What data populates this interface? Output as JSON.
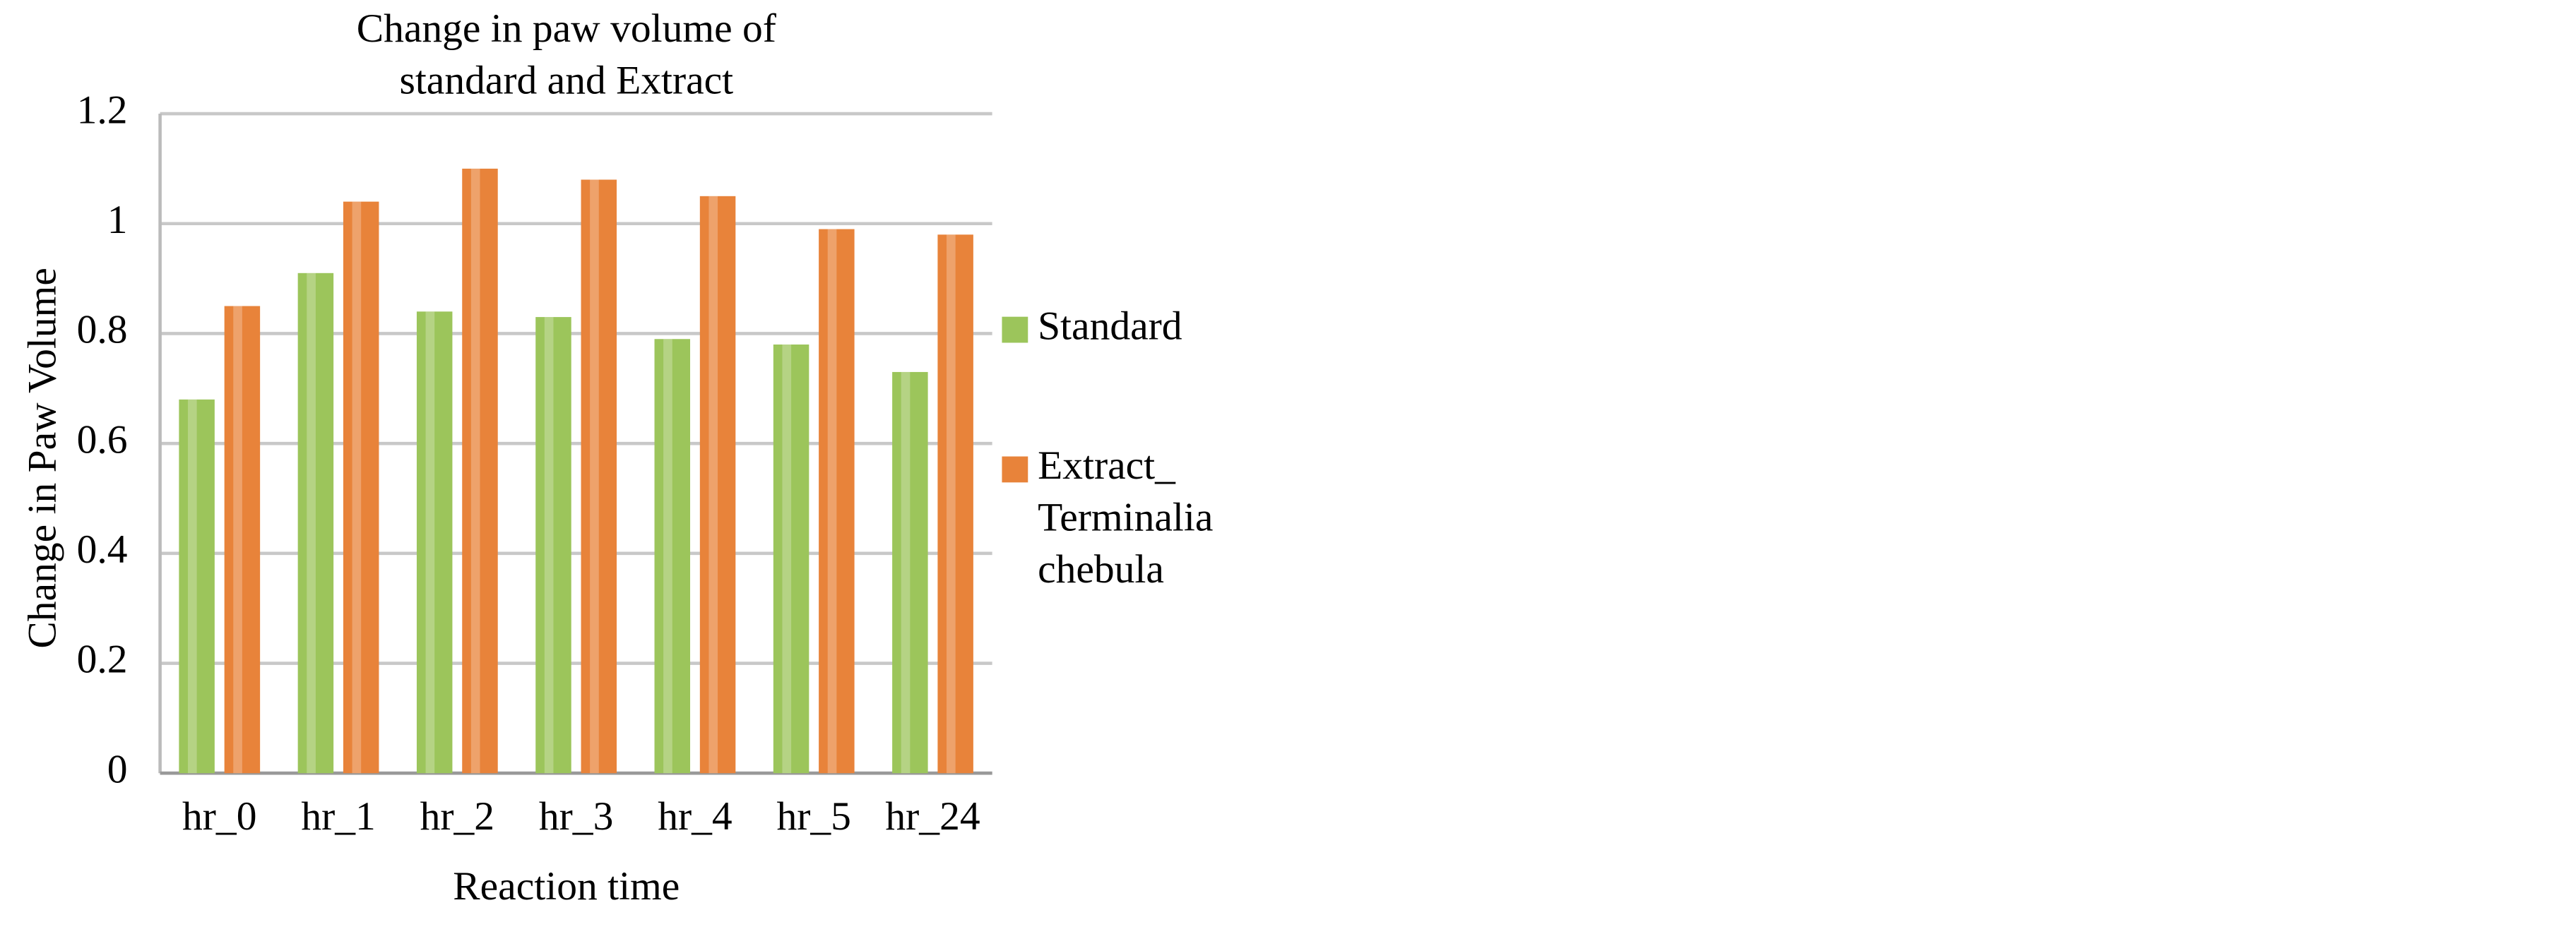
{
  "chart_data": {
    "type": "bar",
    "title": "Change in paw volume of standard and Extract",
    "x_label": "Reaction time",
    "y_label": "Change in Paw Volume",
    "categories": [
      "hr_0",
      "hr_1",
      "hr_2",
      "hr_3",
      "hr_4",
      "hr_5",
      "hr_24"
    ],
    "series": [
      {
        "name": "Standard",
        "color": "#9cc55b",
        "values": [
          0.68,
          0.91,
          0.84,
          0.83,
          0.79,
          0.78,
          0.73
        ]
      },
      {
        "name": "Extract_ Terminalia chebula",
        "color": "#e8833a",
        "values": [
          0.85,
          1.04,
          1.1,
          1.08,
          1.05,
          0.99,
          0.98
        ]
      }
    ],
    "ylim": [
      0,
      1.2
    ],
    "yticks": [
      0,
      0.2,
      0.4,
      0.6,
      0.8,
      1,
      1.2
    ],
    "grid": true,
    "legend": "right"
  }
}
